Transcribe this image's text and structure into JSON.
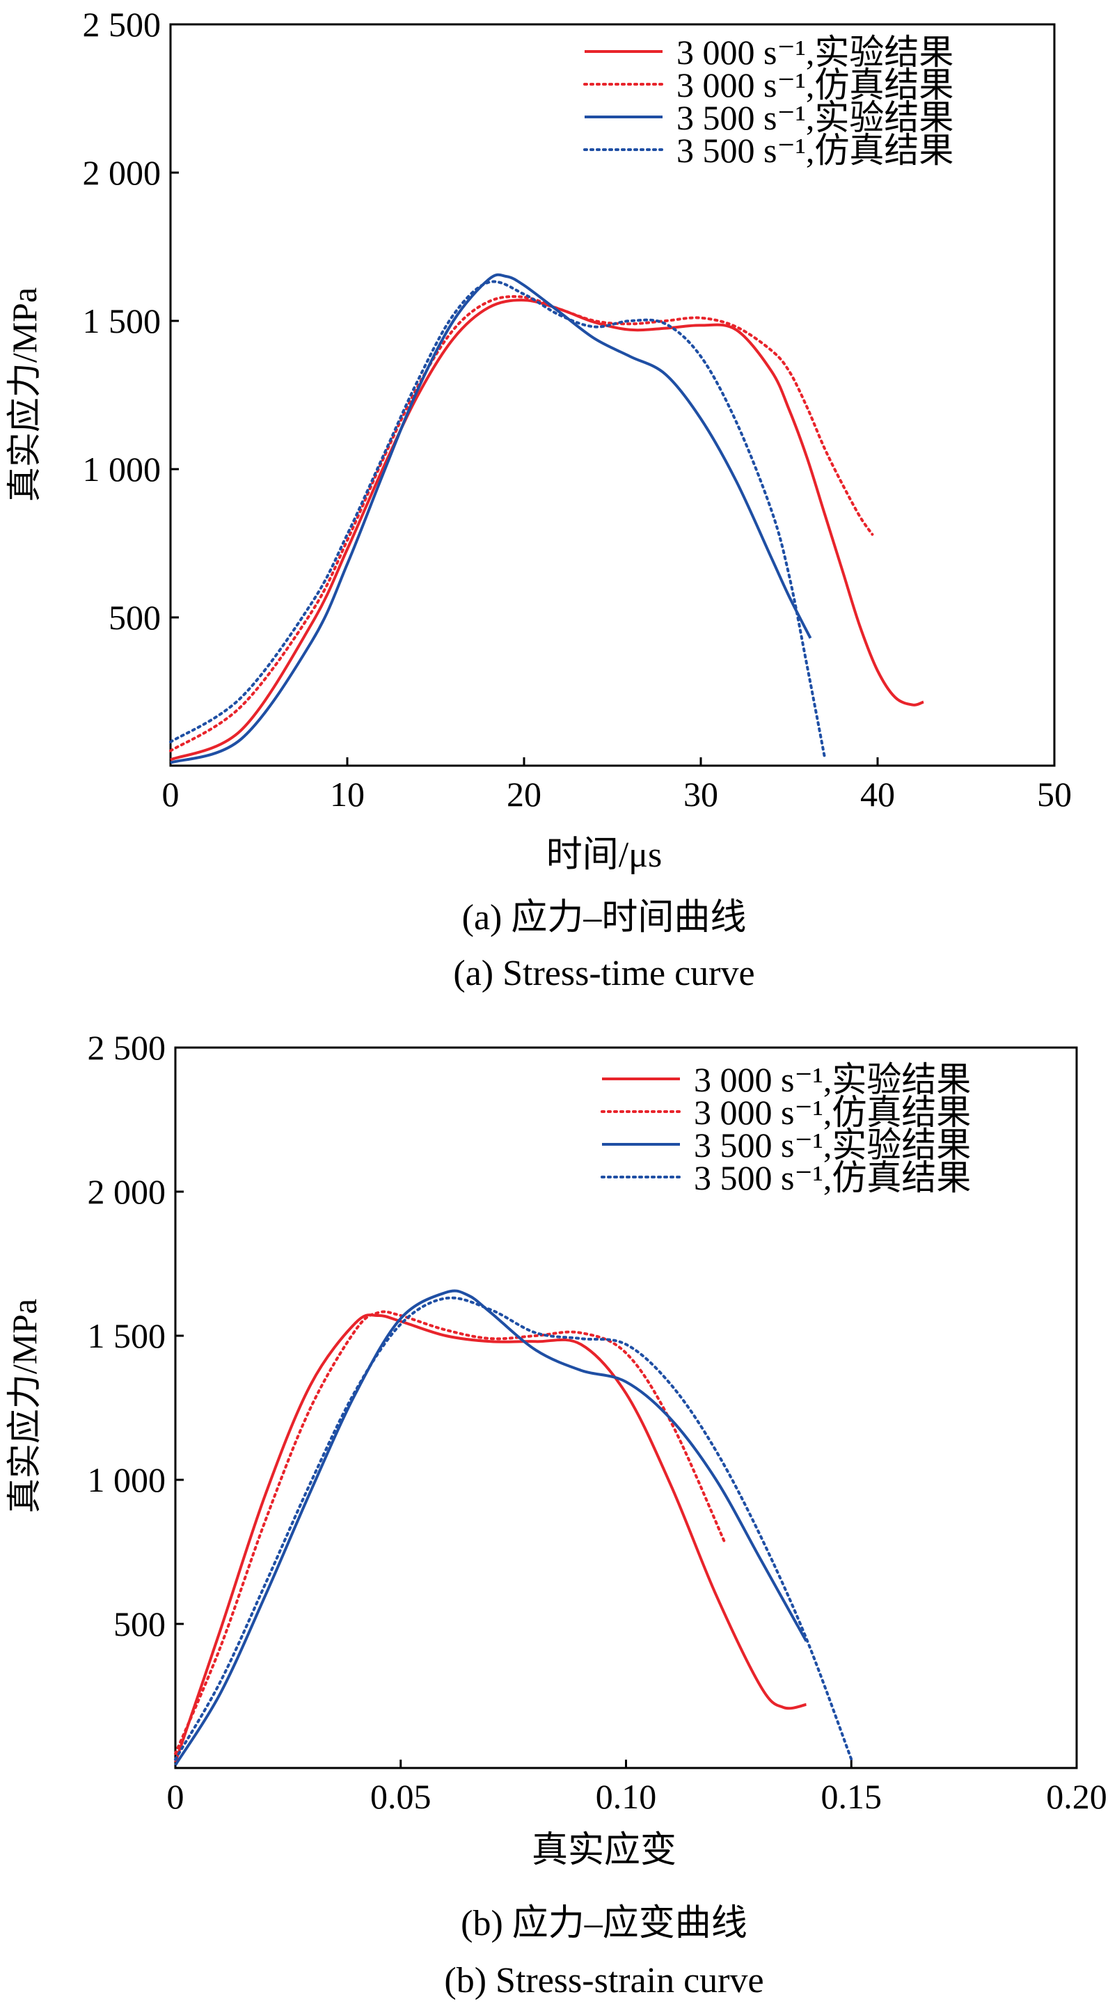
{
  "chart_data": [
    {
      "type": "line",
      "panel": "a",
      "xlabel": "时间/μs",
      "ylabel": "真实应力/MPa",
      "xlim": [
        0,
        50
      ],
      "ylim": [
        0,
        2500
      ],
      "xticks": [
        0,
        10,
        20,
        30,
        40,
        50
      ],
      "xtick_labels": [
        "0",
        "10",
        "20",
        "30",
        "40",
        "50"
      ],
      "yticks": [
        500,
        1000,
        1500,
        2000,
        2500
      ],
      "ytick_labels": [
        "500",
        "1 000",
        "1 500",
        "2 000",
        "2 500"
      ],
      "caption_cn": "(a) 应力–时间曲线",
      "caption_en": "(a) Stress-time curve",
      "legend_position": "top-right",
      "grid": false,
      "series": [
        {
          "name": "3 000 s⁻¹,实验结果",
          "color": "#e8242b",
          "style": "solid",
          "x": [
            0,
            4,
            8,
            10,
            12,
            14,
            16,
            18,
            20,
            22,
            24,
            26,
            28,
            30,
            32,
            34,
            35,
            36,
            37,
            38,
            39,
            40,
            41,
            42,
            42.6
          ],
          "y": [
            20,
            120,
            480,
            730,
            1000,
            1250,
            1440,
            1545,
            1570,
            1540,
            1495,
            1470,
            1475,
            1485,
            1470,
            1330,
            1200,
            1040,
            850,
            660,
            470,
            320,
            230,
            205,
            215
          ]
        },
        {
          "name": "3 000 s⁻¹,仿真结果",
          "color": "#e8242b",
          "style": "dotted",
          "x": [
            0,
            4,
            8,
            10,
            12,
            14,
            16,
            18,
            20,
            22,
            24,
            26,
            28,
            30,
            32,
            34,
            35,
            36,
            37,
            38,
            39,
            39.7
          ],
          "y": [
            50,
            200,
            520,
            760,
            1030,
            1280,
            1470,
            1565,
            1580,
            1540,
            1500,
            1490,
            1500,
            1510,
            1480,
            1400,
            1330,
            1210,
            1070,
            950,
            840,
            780
          ]
        },
        {
          "name": "3 500 s⁻¹,实验结果",
          "color": "#1f4fa4",
          "style": "solid",
          "x": [
            0,
            4,
            8,
            10,
            12,
            14,
            16,
            18,
            19,
            20,
            22,
            24,
            26,
            28,
            30,
            32,
            34,
            35,
            36.2
          ],
          "y": [
            10,
            90,
            420,
            680,
            980,
            1270,
            1500,
            1640,
            1650,
            1620,
            1530,
            1440,
            1380,
            1320,
            1170,
            960,
            700,
            570,
            430
          ]
        },
        {
          "name": "3 500 s⁻¹,仿真结果",
          "color": "#1f4fa4",
          "style": "dotted",
          "x": [
            0,
            4,
            8,
            10,
            12,
            14,
            16,
            18,
            20,
            22,
            24,
            26,
            28,
            30,
            32,
            34,
            35,
            36,
            37
          ],
          "y": [
            80,
            230,
            550,
            780,
            1040,
            1300,
            1520,
            1630,
            1590,
            1520,
            1480,
            1500,
            1490,
            1380,
            1160,
            860,
            640,
            340,
            30
          ]
        }
      ]
    },
    {
      "type": "line",
      "panel": "b",
      "xlabel": "真实应变",
      "ylabel": "真实应力/MPa",
      "xlim": [
        0,
        0.2
      ],
      "ylim": [
        0,
        2500
      ],
      "xticks": [
        0,
        0.05,
        0.1,
        0.15,
        0.2
      ],
      "xtick_labels": [
        "0",
        "0.05",
        "0.10",
        "0.15",
        "0.20"
      ],
      "yticks": [
        500,
        1000,
        1500,
        2000,
        2500
      ],
      "ytick_labels": [
        "500",
        "1 000",
        "1 500",
        "2 000",
        "2 500"
      ],
      "caption_cn": "(b) 应力–应变曲线",
      "caption_en": "(b) Stress-strain curve",
      "legend_position": "top-right",
      "grid": false,
      "series": [
        {
          "name": "3 000 s⁻¹,实验结果",
          "color": "#e8242b",
          "style": "solid",
          "x": [
            0,
            0.01,
            0.02,
            0.03,
            0.04,
            0.045,
            0.05,
            0.06,
            0.07,
            0.08,
            0.09,
            0.1,
            0.11,
            0.12,
            0.13,
            0.135,
            0.14
          ],
          "y": [
            20,
            480,
            950,
            1330,
            1545,
            1570,
            1550,
            1500,
            1480,
            1480,
            1470,
            1300,
            980,
            600,
            280,
            210,
            220
          ]
        },
        {
          "name": "3 000 s⁻¹,仿真结果",
          "color": "#e8242b",
          "style": "dotted",
          "x": [
            0,
            0.01,
            0.02,
            0.03,
            0.04,
            0.045,
            0.05,
            0.06,
            0.07,
            0.08,
            0.09,
            0.1,
            0.11,
            0.122
          ],
          "y": [
            50,
            420,
            860,
            1250,
            1520,
            1580,
            1570,
            1520,
            1490,
            1500,
            1510,
            1440,
            1200,
            780
          ]
        },
        {
          "name": "3 500 s⁻¹,实验结果",
          "color": "#1f4fa4",
          "style": "solid",
          "x": [
            0,
            0.01,
            0.02,
            0.03,
            0.04,
            0.05,
            0.06,
            0.065,
            0.07,
            0.08,
            0.09,
            0.1,
            0.11,
            0.12,
            0.13,
            0.14
          ],
          "y": [
            10,
            260,
            600,
            960,
            1300,
            1560,
            1650,
            1640,
            1580,
            1450,
            1380,
            1340,
            1210,
            1000,
            720,
            440
          ]
        },
        {
          "name": "3 500 s⁻¹,仿真结果",
          "color": "#1f4fa4",
          "style": "dotted",
          "x": [
            0,
            0.01,
            0.02,
            0.03,
            0.04,
            0.05,
            0.06,
            0.07,
            0.08,
            0.09,
            0.1,
            0.11,
            0.12,
            0.13,
            0.14,
            0.15
          ],
          "y": [
            30,
            300,
            640,
            990,
            1310,
            1540,
            1630,
            1590,
            1510,
            1490,
            1470,
            1330,
            1100,
            800,
            450,
            30
          ]
        }
      ]
    }
  ]
}
